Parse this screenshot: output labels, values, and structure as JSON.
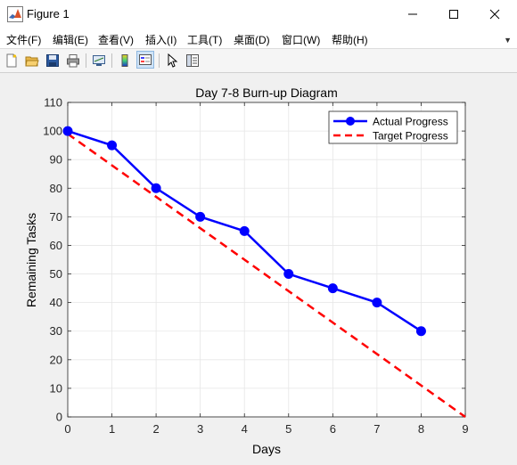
{
  "window": {
    "title": "Figure 1",
    "icon": "matlab-icon"
  },
  "menu": {
    "items": [
      {
        "label": "文件(F)"
      },
      {
        "label": "编辑(E)"
      },
      {
        "label": "查看(V)"
      },
      {
        "label": "插入(I)"
      },
      {
        "label": "工具(T)"
      },
      {
        "label": "桌面(D)"
      },
      {
        "label": "窗口(W)"
      },
      {
        "label": "帮助(H)"
      }
    ]
  },
  "toolbar": {
    "buttons": [
      {
        "icon": "new-figure-icon"
      },
      {
        "icon": "open-file-icon"
      },
      {
        "icon": "save-icon"
      },
      {
        "icon": "print-icon"
      },
      {
        "icon": "link-plot-icon"
      },
      {
        "icon": "insert-colorbar-icon"
      },
      {
        "icon": "insert-legend-icon"
      },
      {
        "icon": "edit-plot-icon"
      },
      {
        "icon": "property-editor-icon"
      }
    ]
  },
  "colors": {
    "actual": "#0000ff",
    "target": "#ff0000",
    "grid": "#e6e6e6",
    "axes_bg": "#ffffff"
  },
  "chart_data": {
    "type": "line",
    "title": "Day 7-8 Burn-up Diagram",
    "xlabel": "Days",
    "ylabel": "Remaining Tasks",
    "xlim": [
      0,
      9
    ],
    "ylim": [
      0,
      110
    ],
    "xticks": [
      "0",
      "1",
      "2",
      "3",
      "4",
      "5",
      "6",
      "7",
      "8",
      "9"
    ],
    "yticks": [
      "0",
      "10",
      "20",
      "30",
      "40",
      "50",
      "60",
      "70",
      "80",
      "90",
      "100",
      "110"
    ],
    "grid": true,
    "legend_position": "top-right",
    "series": [
      {
        "name": "Actual Progress",
        "style": "solid-with-markers",
        "x": [
          0,
          1,
          2,
          3,
          4,
          5,
          6,
          7,
          8
        ],
        "y": [
          100,
          95,
          80,
          70,
          65,
          50,
          45,
          40,
          30
        ]
      },
      {
        "name": "Target Progress",
        "style": "dashed",
        "x": [
          0,
          9
        ],
        "y": [
          99,
          0
        ]
      }
    ]
  }
}
